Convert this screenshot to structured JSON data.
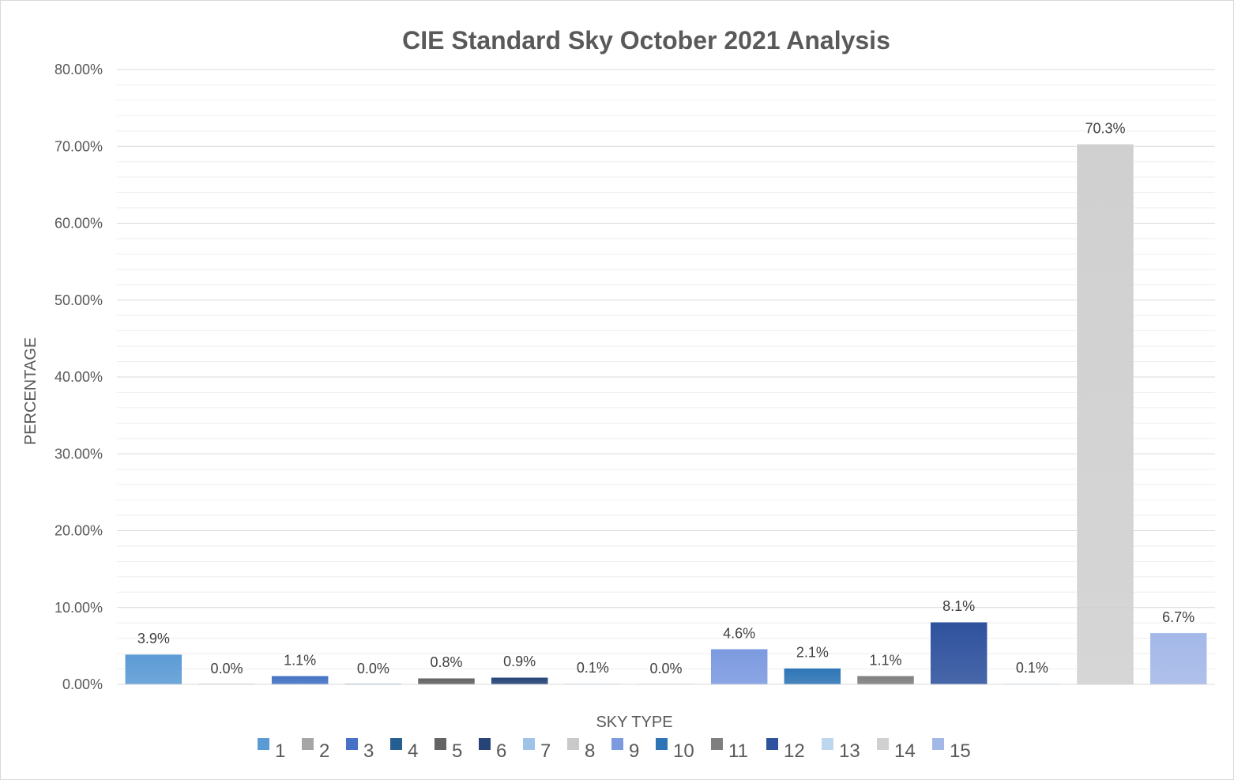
{
  "chart_data": {
    "type": "bar",
    "title": "CIE Standard Sky October 2021 Analysis",
    "xlabel": "SKY TYPE",
    "ylabel": "PERCENTAGE",
    "ylim": [
      0,
      80
    ],
    "y_ticks": [
      "0.00%",
      "10.00%",
      "20.00%",
      "30.00%",
      "40.00%",
      "50.00%",
      "60.00%",
      "70.00%",
      "80.00%"
    ],
    "grid": true,
    "legend_position": "bottom",
    "categories": [
      "1",
      "2",
      "3",
      "4",
      "5",
      "6",
      "7",
      "8",
      "9",
      "10",
      "11",
      "12",
      "13",
      "14",
      "15"
    ],
    "values": [
      3.9,
      0.0,
      1.1,
      0.0,
      0.8,
      0.9,
      0.1,
      0.0,
      4.6,
      2.1,
      1.1,
      8.1,
      0.1,
      70.3,
      6.7
    ],
    "data_labels": [
      "3.9%",
      "0.0%",
      "1.1%",
      "0.0%",
      "0.8%",
      "0.9%",
      "0.1%",
      "0.0%",
      "4.6%",
      "2.1%",
      "1.1%",
      "8.1%",
      "0.1%",
      "70.3%",
      "6.7%"
    ],
    "colors": [
      "#5b9bd5",
      "#a5a5a5",
      "#4472c4",
      "#255e91",
      "#636363",
      "#264478",
      "#9dc3e6",
      "#c9c9c9",
      "#7c9ae0",
      "#2e75b6",
      "#7f7f7f",
      "#2f529e",
      "#bdd7ee",
      "#d0d0d0",
      "#a4b8e8"
    ]
  }
}
